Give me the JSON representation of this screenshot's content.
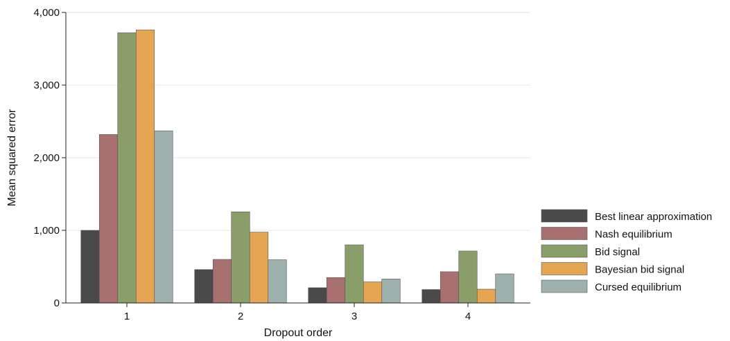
{
  "chart_data": {
    "type": "bar",
    "title": "",
    "xlabel": "Dropout order",
    "ylabel": "Mean squared error",
    "categories": [
      "1",
      "2",
      "3",
      "4"
    ],
    "ylim": [
      0,
      4000
    ],
    "yticks": [
      0,
      1000,
      2000,
      3000,
      4000
    ],
    "ytick_labels": [
      "0",
      "1,000",
      "2,000",
      "3,000",
      "4,000"
    ],
    "grid": true,
    "legend_position": "right",
    "series": [
      {
        "name": "Best linear approximation",
        "color": "#4a4a4a",
        "values": [
          1000,
          460,
          210,
          185
        ]
      },
      {
        "name": "Nash equilibrium",
        "color": "#a8706f",
        "values": [
          2320,
          600,
          350,
          430
        ]
      },
      {
        "name": "Bid signal",
        "color": "#8a9e6a",
        "values": [
          3720,
          1255,
          800,
          715
        ]
      },
      {
        "name": "Bayesian bid signal",
        "color": "#e6a552",
        "values": [
          3760,
          975,
          290,
          190
        ]
      },
      {
        "name": "Cursed equilibrium",
        "color": "#9db1ae",
        "values": [
          2370,
          595,
          330,
          400
        ]
      }
    ]
  }
}
